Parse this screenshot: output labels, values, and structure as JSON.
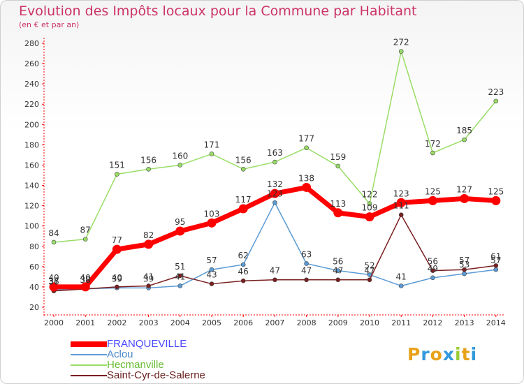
{
  "title": "Evolution des Impôts locaux pour la Commune par Habitant",
  "subtitle": "(en € et par an)",
  "logo": {
    "letters": [
      "P",
      "r",
      "o",
      "x",
      "i",
      "t",
      "i"
    ],
    "colors": [
      "#e8a21a",
      "#3399dd",
      "#e8a21a",
      "#3399dd",
      "#99cc33",
      "#e8a21a",
      "#3399dd"
    ]
  },
  "chart_data": {
    "type": "line",
    "x": [
      "2000",
      "2001",
      "2002",
      "2003",
      "2004",
      "2005",
      "2006",
      "2007",
      "2008",
      "2009",
      "2010",
      "2011",
      "2012",
      "2013",
      "2014"
    ],
    "ylim": [
      20,
      280
    ],
    "yticks": [
      20,
      40,
      60,
      80,
      100,
      120,
      140,
      160,
      180,
      200,
      220,
      240,
      260,
      280
    ],
    "grid": false,
    "legend_position": "bottom-left",
    "series": [
      {
        "name": "FRANQUEVILLE",
        "color": "#ff0000",
        "label_color": "#4a4aff",
        "values": [
          40,
          40,
          77,
          82,
          95,
          103,
          117,
          132,
          138,
          113,
          109,
          123,
          125,
          127,
          125
        ]
      },
      {
        "name": "Aclou",
        "color": "#5b9bd5",
        "label_color": "#4a86c8",
        "values": [
          37,
          38,
          39,
          39,
          41,
          57,
          62,
          123,
          63,
          56,
          52,
          41,
          49,
          53,
          57
        ]
      },
      {
        "name": "Hecmanville",
        "color": "#99dd66",
        "label_color": "#66bb33",
        "values": [
          84,
          87,
          151,
          156,
          160,
          171,
          156,
          163,
          177,
          159,
          122,
          272,
          172,
          185,
          223
        ]
      },
      {
        "name": "Saint-Cyr-de-Salerne",
        "color": "#7a1f1f",
        "label_color": "#6b2020",
        "values": [
          36,
          38,
          40,
          41,
          51,
          43,
          46,
          47,
          47,
          47,
          47,
          111,
          56,
          57,
          61
        ]
      }
    ]
  }
}
